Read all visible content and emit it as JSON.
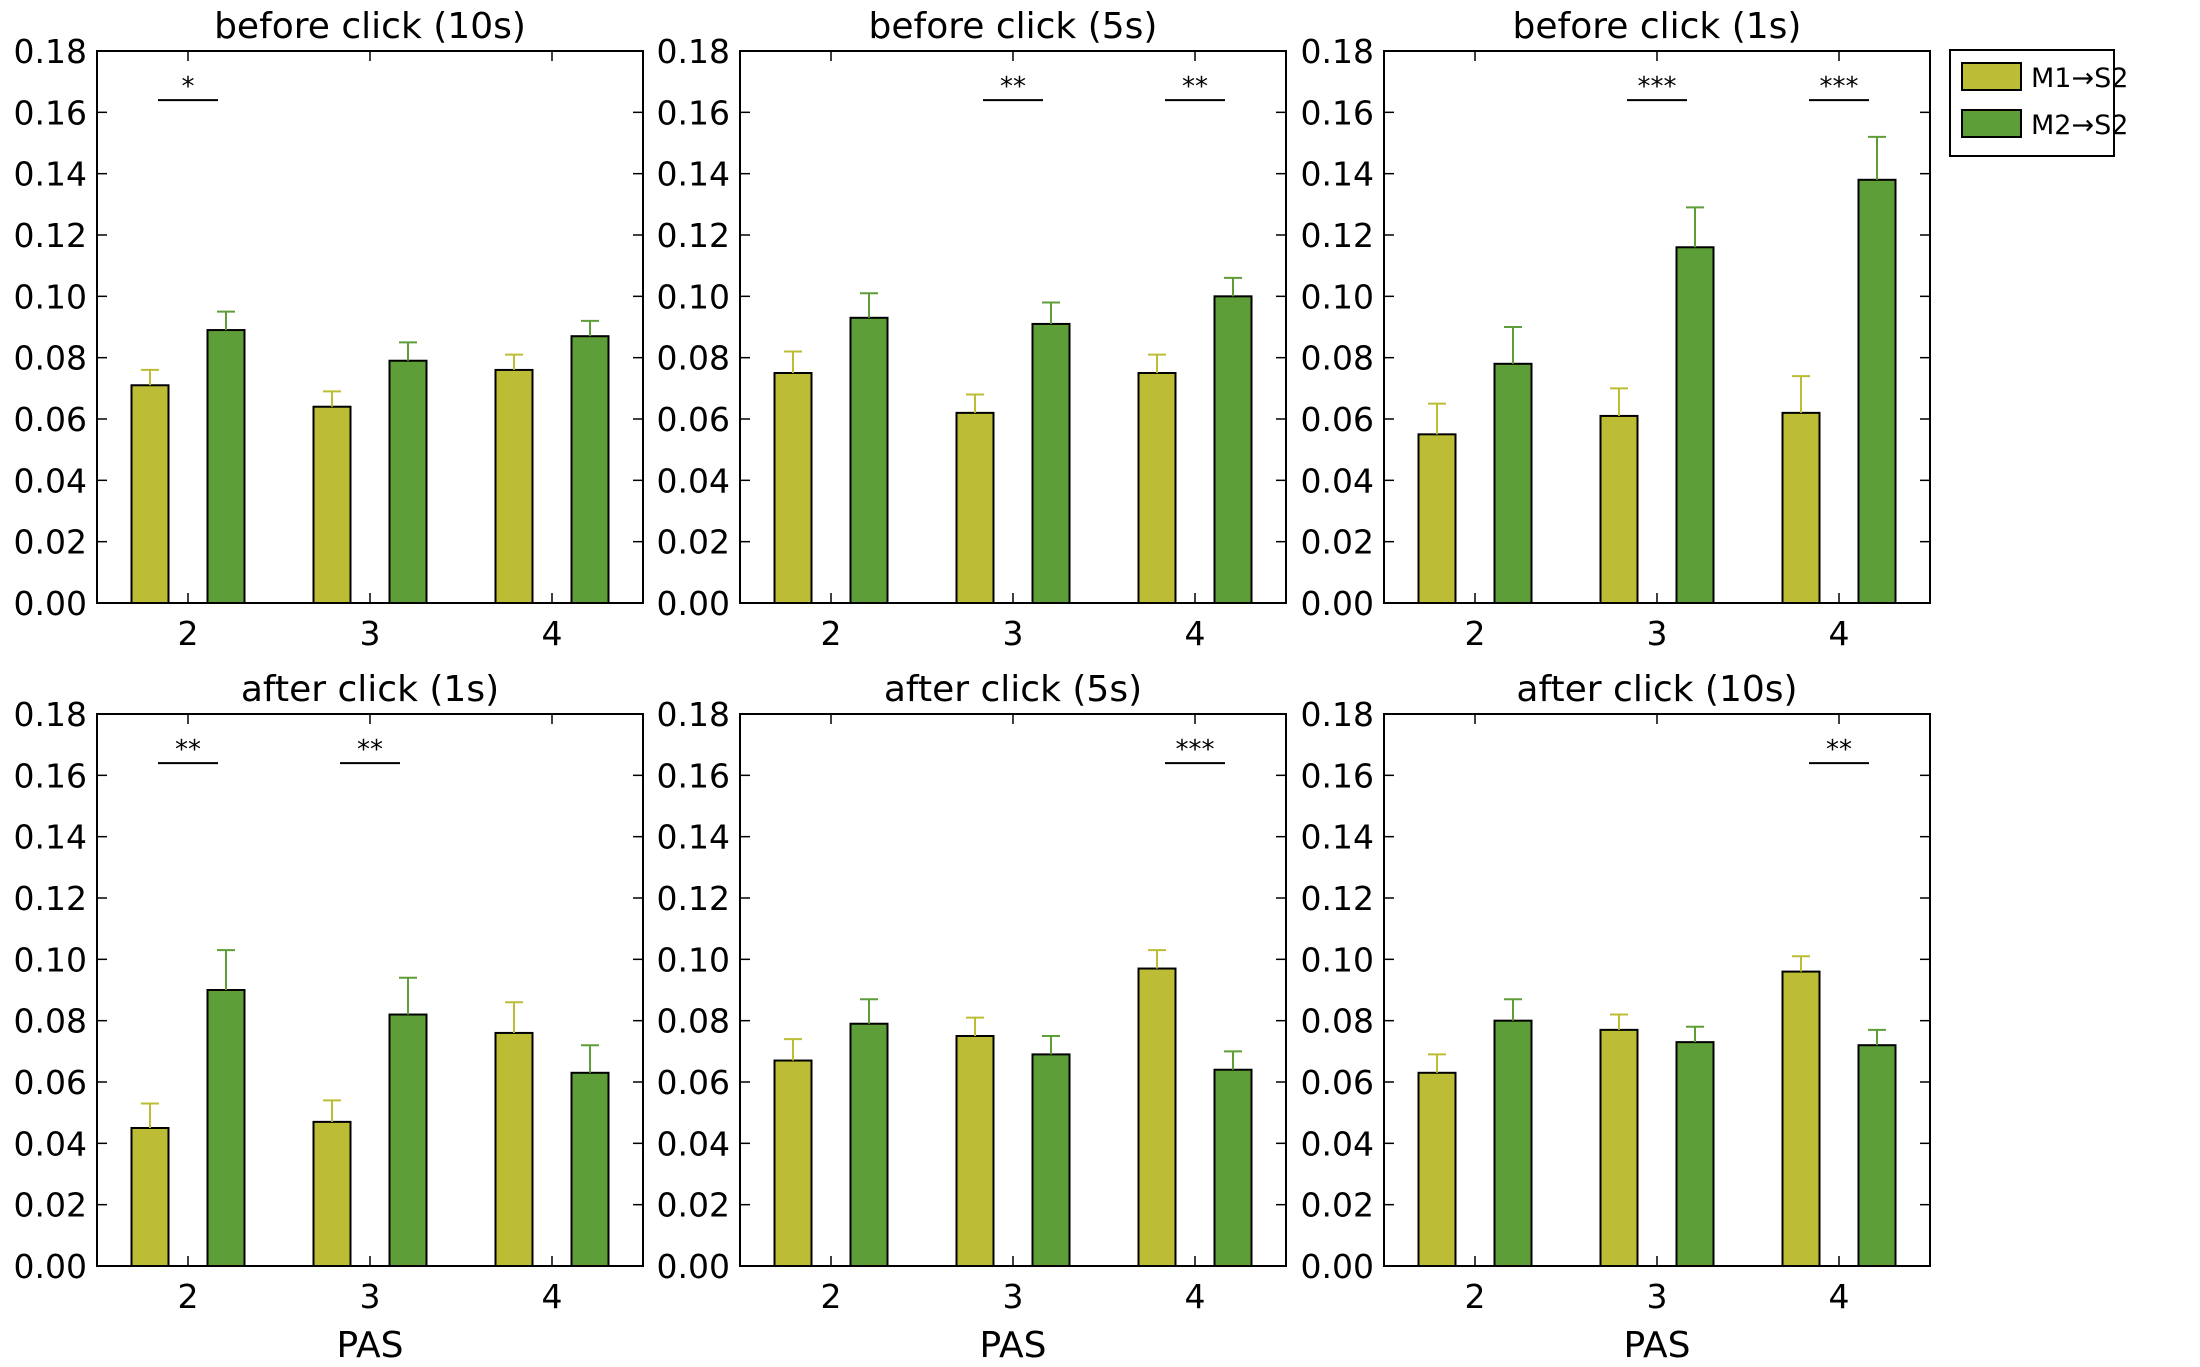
{
  "legend": {
    "entries": [
      {
        "label": "M1→S2",
        "color": "#bcbd35"
      },
      {
        "label": "M2→S2",
        "color": "#5e9e38"
      }
    ],
    "placement": "top-right outside"
  },
  "chart_data": [
    {
      "type": "bar",
      "title": "before click (10s)",
      "xlabel": "",
      "ylabel": "",
      "categories": [
        "2",
        "3",
        "4"
      ],
      "ylim": [
        0,
        0.18
      ],
      "yticks": [
        "0.00",
        "0.02",
        "0.04",
        "0.06",
        "0.08",
        "0.10",
        "0.12",
        "0.14",
        "0.16",
        "0.18"
      ],
      "series": [
        {
          "name": "M1→S2",
          "values": [
            0.071,
            0.064,
            0.076
          ],
          "errors": [
            0.005,
            0.005,
            0.005
          ]
        },
        {
          "name": "M2→S2",
          "values": [
            0.089,
            0.079,
            0.087
          ],
          "errors": [
            0.006,
            0.006,
            0.005
          ]
        }
      ],
      "significance": [
        {
          "category": "2",
          "label": "*"
        }
      ]
    },
    {
      "type": "bar",
      "title": "before click (5s)",
      "xlabel": "",
      "ylabel": "",
      "categories": [
        "2",
        "3",
        "4"
      ],
      "ylim": [
        0,
        0.18
      ],
      "yticks": [
        "0.00",
        "0.02",
        "0.04",
        "0.06",
        "0.08",
        "0.10",
        "0.12",
        "0.14",
        "0.16",
        "0.18"
      ],
      "series": [
        {
          "name": "M1→S2",
          "values": [
            0.075,
            0.062,
            0.075
          ],
          "errors": [
            0.007,
            0.006,
            0.006
          ]
        },
        {
          "name": "M2→S2",
          "values": [
            0.093,
            0.091,
            0.1
          ],
          "errors": [
            0.008,
            0.007,
            0.006
          ]
        }
      ],
      "significance": [
        {
          "category": "3",
          "label": "**"
        },
        {
          "category": "4",
          "label": "**"
        }
      ]
    },
    {
      "type": "bar",
      "title": "before click (1s)",
      "xlabel": "",
      "ylabel": "",
      "categories": [
        "2",
        "3",
        "4"
      ],
      "ylim": [
        0,
        0.18
      ],
      "yticks": [
        "0.00",
        "0.02",
        "0.04",
        "0.06",
        "0.08",
        "0.10",
        "0.12",
        "0.14",
        "0.16",
        "0.18"
      ],
      "series": [
        {
          "name": "M1→S2",
          "values": [
            0.055,
            0.061,
            0.062
          ],
          "errors": [
            0.01,
            0.009,
            0.012
          ]
        },
        {
          "name": "M2→S2",
          "values": [
            0.078,
            0.116,
            0.138
          ],
          "errors": [
            0.012,
            0.013,
            0.014
          ]
        }
      ],
      "significance": [
        {
          "category": "3",
          "label": "***"
        },
        {
          "category": "4",
          "label": "***"
        }
      ]
    },
    {
      "type": "bar",
      "title": "after click (1s)",
      "xlabel": "PAS",
      "ylabel": "",
      "categories": [
        "2",
        "3",
        "4"
      ],
      "ylim": [
        0,
        0.18
      ],
      "yticks": [
        "0.00",
        "0.02",
        "0.04",
        "0.06",
        "0.08",
        "0.10",
        "0.12",
        "0.14",
        "0.16",
        "0.18"
      ],
      "series": [
        {
          "name": "M1→S2",
          "values": [
            0.045,
            0.047,
            0.076
          ],
          "errors": [
            0.008,
            0.007,
            0.01
          ]
        },
        {
          "name": "M2→S2",
          "values": [
            0.09,
            0.082,
            0.063
          ],
          "errors": [
            0.013,
            0.012,
            0.009
          ]
        }
      ],
      "significance": [
        {
          "category": "2",
          "label": "**"
        },
        {
          "category": "3",
          "label": "**"
        }
      ]
    },
    {
      "type": "bar",
      "title": "after click (5s)",
      "xlabel": "PAS",
      "ylabel": "",
      "categories": [
        "2",
        "3",
        "4"
      ],
      "ylim": [
        0,
        0.18
      ],
      "yticks": [
        "0.00",
        "0.02",
        "0.04",
        "0.06",
        "0.08",
        "0.10",
        "0.12",
        "0.14",
        "0.16",
        "0.18"
      ],
      "series": [
        {
          "name": "M1→S2",
          "values": [
            0.067,
            0.075,
            0.097
          ],
          "errors": [
            0.007,
            0.006,
            0.006
          ]
        },
        {
          "name": "M2→S2",
          "values": [
            0.079,
            0.069,
            0.064
          ],
          "errors": [
            0.008,
            0.006,
            0.006
          ]
        }
      ],
      "significance": [
        {
          "category": "4",
          "label": "***"
        }
      ]
    },
    {
      "type": "bar",
      "title": "after click (10s)",
      "xlabel": "PAS",
      "ylabel": "",
      "categories": [
        "2",
        "3",
        "4"
      ],
      "ylim": [
        0,
        0.18
      ],
      "yticks": [
        "0.00",
        "0.02",
        "0.04",
        "0.06",
        "0.08",
        "0.10",
        "0.12",
        "0.14",
        "0.16",
        "0.18"
      ],
      "series": [
        {
          "name": "M1→S2",
          "values": [
            0.063,
            0.077,
            0.096
          ],
          "errors": [
            0.006,
            0.005,
            0.005
          ]
        },
        {
          "name": "M2→S2",
          "values": [
            0.08,
            0.073,
            0.072
          ],
          "errors": [
            0.007,
            0.005,
            0.005
          ]
        }
      ],
      "significance": [
        {
          "category": "4",
          "label": "**"
        }
      ]
    }
  ]
}
